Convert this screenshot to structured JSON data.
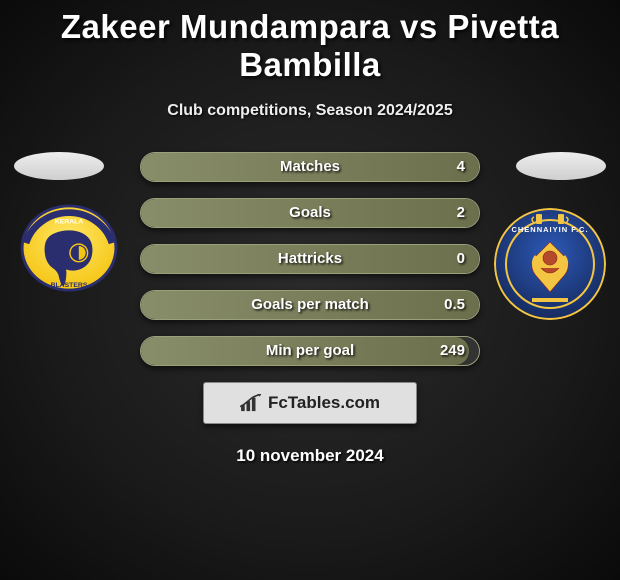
{
  "title": "Zakeer Mundampara vs Pivetta Bambilla",
  "subtitle": "Club competitions, Season 2024/2025",
  "colors": {
    "bar_border": "#9aa07a",
    "bar_fill_start": "#888d6a",
    "bar_fill_end": "#6c6f4b",
    "bar_bg": "#333333",
    "text_shadow": "rgba(0,0,0,0.85)"
  },
  "left_player": {
    "oval_present": true,
    "club": {
      "name": "Kerala Blasters",
      "bg_color": "#fedd2a",
      "ring_color": "#2a2e6e"
    }
  },
  "right_player": {
    "oval_present": true,
    "club": {
      "name": "Chennaiyin FC",
      "bg_color": "#1f3f8a",
      "ring_color": "#f4c542"
    }
  },
  "stats": [
    {
      "label": "Matches",
      "value": "4",
      "fill_pct": 100
    },
    {
      "label": "Goals",
      "value": "2",
      "fill_pct": 100
    },
    {
      "label": "Hattricks",
      "value": "0",
      "fill_pct": 100
    },
    {
      "label": "Goals per match",
      "value": "0.5",
      "fill_pct": 100
    },
    {
      "label": "Min per goal",
      "value": "249",
      "fill_pct": 97
    }
  ],
  "brand": "FcTables.com",
  "date": "10 november 2024"
}
